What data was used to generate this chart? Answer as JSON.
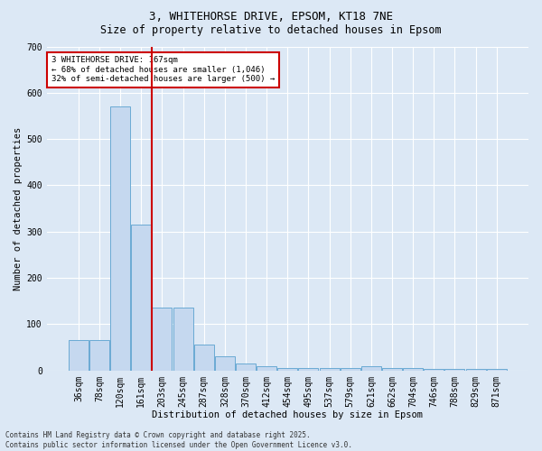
{
  "title1": "3, WHITEHORSE DRIVE, EPSOM, KT18 7NE",
  "title2": "Size of property relative to detached houses in Epsom",
  "xlabel": "Distribution of detached houses by size in Epsom",
  "ylabel": "Number of detached properties",
  "categories": [
    "36sqm",
    "78sqm",
    "120sqm",
    "161sqm",
    "203sqm",
    "245sqm",
    "287sqm",
    "328sqm",
    "370sqm",
    "412sqm",
    "454sqm",
    "495sqm",
    "537sqm",
    "579sqm",
    "621sqm",
    "662sqm",
    "704sqm",
    "746sqm",
    "788sqm",
    "829sqm",
    "871sqm"
  ],
  "values": [
    65,
    65,
    570,
    315,
    135,
    135,
    55,
    30,
    15,
    10,
    5,
    5,
    5,
    5,
    10,
    5,
    5,
    3,
    3,
    3,
    3
  ],
  "bar_color": "#c5d8ef",
  "bar_edge_color": "#6aaad4",
  "vline_x_idx": 3,
  "vline_color": "#cc0000",
  "annotation_text": "3 WHITEHORSE DRIVE: 167sqm\n← 68% of detached houses are smaller (1,046)\n32% of semi-detached houses are larger (500) →",
  "annotation_box_facecolor": "#ffffff",
  "annotation_box_edgecolor": "#cc0000",
  "footer1": "Contains HM Land Registry data © Crown copyright and database right 2025.",
  "footer2": "Contains public sector information licensed under the Open Government Licence v3.0.",
  "bg_color": "#dce8f5",
  "plot_bg_color": "#dce8f5",
  "ylim": [
    0,
    700
  ],
  "yticks": [
    0,
    100,
    200,
    300,
    400,
    500,
    600,
    700
  ],
  "title1_fontsize": 9,
  "title2_fontsize": 8.5,
  "tick_fontsize": 7,
  "label_fontsize": 7.5,
  "ann_fontsize": 6.5,
  "footer_fontsize": 5.5
}
